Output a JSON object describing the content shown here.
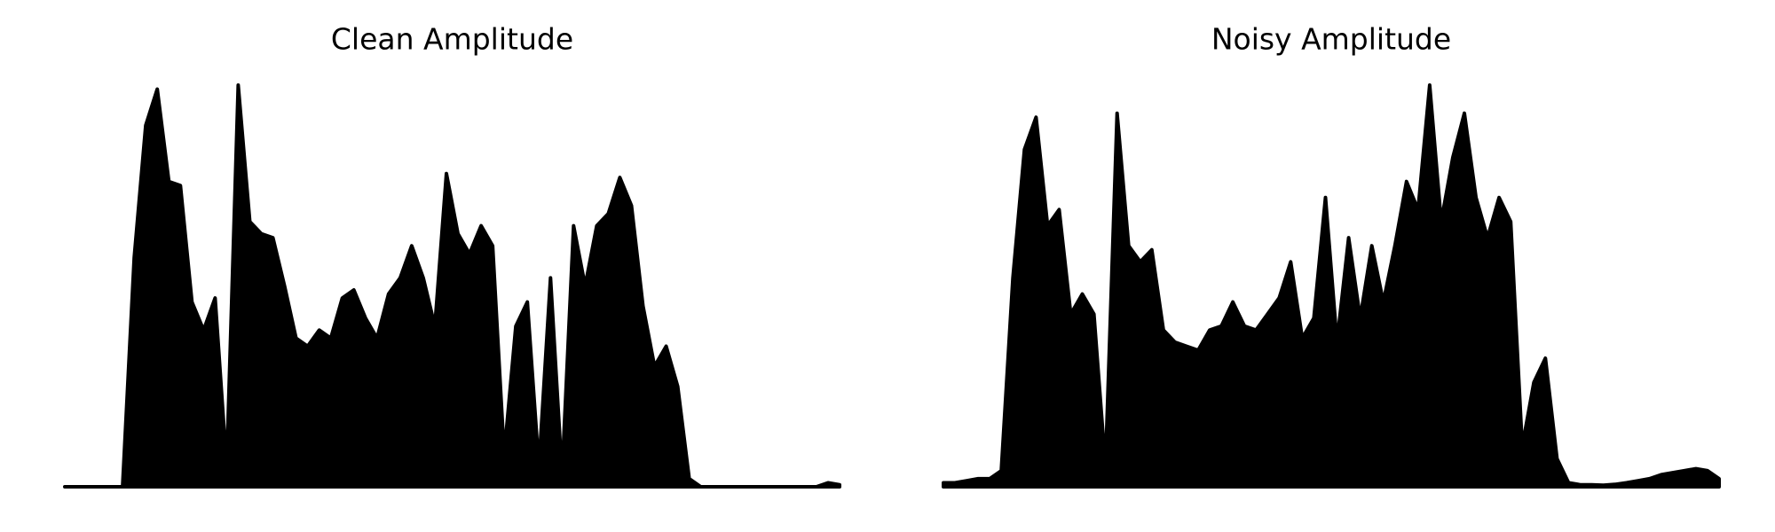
{
  "chart_data": [
    {
      "type": "area",
      "title": "Clean Amplitude",
      "color": "#000000",
      "ylim": [
        0,
        1
      ],
      "values": [
        0,
        0,
        0,
        0,
        0,
        0,
        0.57,
        0.9,
        0.99,
        0.76,
        0.75,
        0.46,
        0.39,
        0.47,
        0.05,
        1.0,
        0.66,
        0.63,
        0.62,
        0.5,
        0.37,
        0.35,
        0.39,
        0.37,
        0.47,
        0.49,
        0.42,
        0.37,
        0.48,
        0.52,
        0.6,
        0.52,
        0.4,
        0.78,
        0.63,
        0.58,
        0.65,
        0.6,
        0.08,
        0.4,
        0.46,
        0.05,
        0.52,
        0.03,
        0.65,
        0.5,
        0.65,
        0.68,
        0.77,
        0.7,
        0.45,
        0.3,
        0.35,
        0.25,
        0.02,
        0,
        0,
        0,
        0,
        0,
        0,
        0,
        0,
        0,
        0,
        0,
        0.01,
        0.005
      ]
    },
    {
      "type": "area",
      "title": "Noisy Amplitude",
      "color": "#000000",
      "ylim": [
        0,
        1
      ],
      "values": [
        0.01,
        0.01,
        0.015,
        0.02,
        0.02,
        0.04,
        0.52,
        0.84,
        0.92,
        0.65,
        0.69,
        0.43,
        0.48,
        0.43,
        0.05,
        0.93,
        0.6,
        0.56,
        0.59,
        0.39,
        0.36,
        0.35,
        0.34,
        0.39,
        0.4,
        0.46,
        0.4,
        0.39,
        0.43,
        0.47,
        0.56,
        0.37,
        0.42,
        0.72,
        0.36,
        0.62,
        0.42,
        0.6,
        0.46,
        0.6,
        0.76,
        0.69,
        1.0,
        0.66,
        0.82,
        0.93,
        0.72,
        0.62,
        0.72,
        0.66,
        0.1,
        0.26,
        0.32,
        0.07,
        0.01,
        0.005,
        0.005,
        0.004,
        0.006,
        0.01,
        0.015,
        0.02,
        0.03,
        0.035,
        0.04,
        0.045,
        0.04,
        0.02
      ]
    }
  ]
}
